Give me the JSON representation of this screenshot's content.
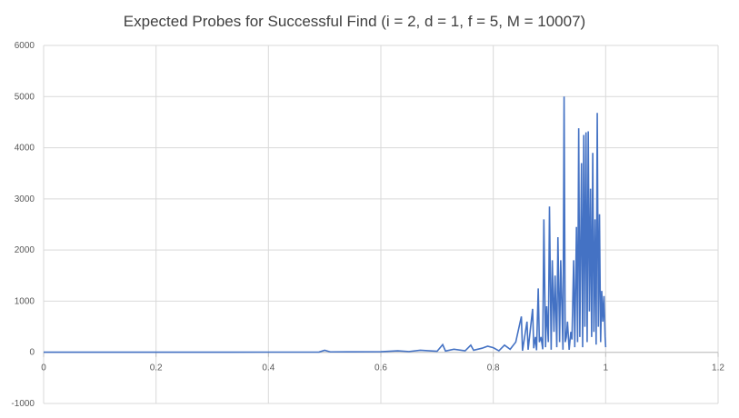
{
  "chart_data": {
    "type": "line",
    "title": "Expected Probes for Successful Find (i = 2, d = 1, f = 5, M = 10007)",
    "xlabel": "",
    "ylabel": "",
    "xlim": [
      0,
      1.2
    ],
    "ylim": [
      -1000,
      6000
    ],
    "x_ticks": [
      "0",
      "0.2",
      "0.4",
      "0.6",
      "0.8",
      "1",
      "1.2"
    ],
    "y_ticks": [
      "-1000",
      "0",
      "1000",
      "2000",
      "3000",
      "4000",
      "5000",
      "6000"
    ],
    "grid": true,
    "legend": "none",
    "line_color": "#4472c4",
    "series": [
      {
        "x": [
          0.0,
          0.1,
          0.2,
          0.3,
          0.4,
          0.49,
          0.5,
          0.51,
          0.55,
          0.6,
          0.63,
          0.65,
          0.67,
          0.7,
          0.71,
          0.715,
          0.73,
          0.75,
          0.76,
          0.765,
          0.78,
          0.79,
          0.8,
          0.81,
          0.82,
          0.83,
          0.84,
          0.85,
          0.852,
          0.86,
          0.862,
          0.87,
          0.872,
          0.875,
          0.877,
          0.88,
          0.882,
          0.885,
          0.888,
          0.89,
          0.893,
          0.895,
          0.898,
          0.9,
          0.903,
          0.905,
          0.908,
          0.91,
          0.913,
          0.915,
          0.918,
          0.92,
          0.924,
          0.926,
          0.928,
          0.93,
          0.932,
          0.935,
          0.938,
          0.94,
          0.943,
          0.945,
          0.948,
          0.95,
          0.952,
          0.954,
          0.957,
          0.959,
          0.961,
          0.963,
          0.965,
          0.967,
          0.969,
          0.971,
          0.973,
          0.975,
          0.977,
          0.979,
          0.981,
          0.983,
          0.985,
          0.987,
          0.989,
          0.991,
          0.993,
          0.995,
          0.997,
          0.999,
          1.0
        ],
        "y": [
          2,
          2,
          3,
          3,
          4,
          5,
          40,
          8,
          10,
          12,
          30,
          15,
          40,
          20,
          150,
          25,
          60,
          30,
          140,
          40,
          80,
          120,
          90,
          30,
          140,
          60,
          200,
          700,
          30,
          600,
          50,
          850,
          80,
          300,
          40,
          1250,
          200,
          300,
          60,
          2600,
          100,
          900,
          200,
          2850,
          50,
          1800,
          400,
          1500,
          100,
          2250,
          200,
          1800,
          50,
          5000,
          200,
          300,
          600,
          50,
          400,
          250,
          1800,
          100,
          2450,
          200,
          4380,
          300,
          3700,
          100,
          4250,
          500,
          4300,
          200,
          4320,
          800,
          3200,
          300,
          3900,
          400,
          2600,
          150,
          4680,
          500,
          2700,
          200,
          1200,
          600,
          1100,
          300,
          100
        ]
      }
    ]
  }
}
